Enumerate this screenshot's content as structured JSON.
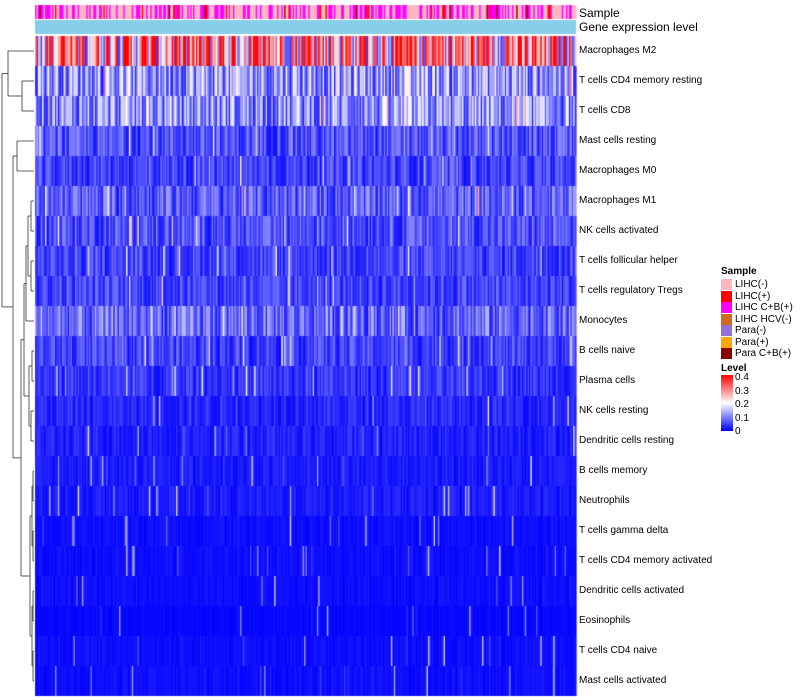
{
  "chart_data": {
    "type": "heatmap",
    "title": "",
    "annotations": [
      "Sample",
      "Gene expression level"
    ],
    "rows": [
      {
        "name": "Macrophages M2",
        "mean": 0.28
      },
      {
        "name": "T cells CD4 memory resting",
        "mean": 0.12
      },
      {
        "name": "T cells CD8",
        "mean": 0.11
      },
      {
        "name": "Mast cells resting",
        "mean": 0.06
      },
      {
        "name": "Macrophages M0",
        "mean": 0.05
      },
      {
        "name": "Macrophages M1",
        "mean": 0.07
      },
      {
        "name": "NK cells activated",
        "mean": 0.06
      },
      {
        "name": "T cells follicular helper",
        "mean": 0.05
      },
      {
        "name": "T cells regulatory  Tregs",
        "mean": 0.05
      },
      {
        "name": "Monocytes",
        "mean": 0.08
      },
      {
        "name": "B cells naive",
        "mean": 0.05
      },
      {
        "name": "Plasma cells",
        "mean": 0.04
      },
      {
        "name": "NK cells resting",
        "mean": 0.03
      },
      {
        "name": "Dendritic cells resting",
        "mean": 0.025
      },
      {
        "name": "B cells memory",
        "mean": 0.02
      },
      {
        "name": "Neutrophils",
        "mean": 0.02
      },
      {
        "name": "T cells gamma delta",
        "mean": 0.01
      },
      {
        "name": "T cells CD4 memory activated",
        "mean": 0.01
      },
      {
        "name": "Dendritic cells activated",
        "mean": 0.01
      },
      {
        "name": "Eosinophils",
        "mean": 0.005
      },
      {
        "name": "T cells CD4 naive",
        "mean": 0.01
      },
      {
        "name": "Mast cells activated",
        "mean": 0.01
      }
    ],
    "legend_sample": {
      "title": "Sample",
      "items": [
        {
          "label": "LIHC(-)",
          "color": "#FFB6C1"
        },
        {
          "label": "LIHC(+)",
          "color": "#FF0000"
        },
        {
          "label": "LIHC C+B(+)",
          "color": "#FF00FF"
        },
        {
          "label": "LIHC HCV(-)",
          "color": "#D2691E"
        },
        {
          "label": "Para(-)",
          "color": "#9370DB"
        },
        {
          "label": "Para(+)",
          "color": "#FFA500"
        },
        {
          "label": "Para C+B(+)",
          "color": "#8B0000"
        }
      ]
    },
    "legend_level": {
      "title": "Level",
      "ticks": [
        "0.4",
        "0.3",
        "0.2",
        "0.1",
        "0"
      ],
      "range": [
        0,
        0.4
      ],
      "colors": [
        "#0000FF",
        "#FFFFFF",
        "#FF0000"
      ]
    },
    "expression_bar_color": "#87CEEB",
    "legend_position": "right"
  }
}
